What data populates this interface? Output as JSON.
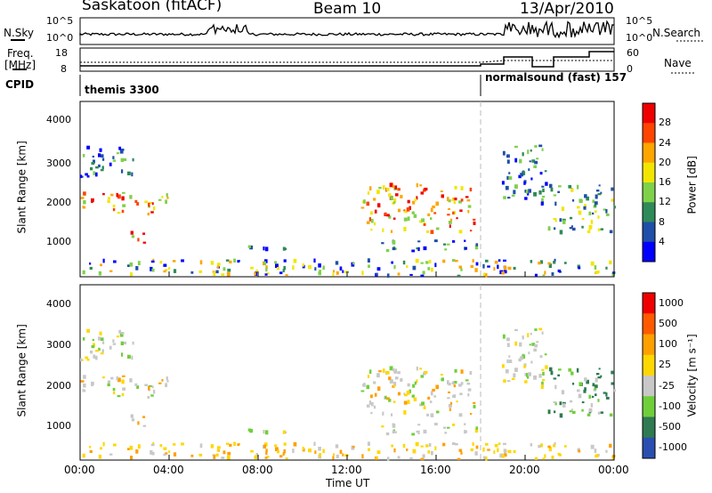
{
  "header": {
    "station": "Saskatoon (fitACF)",
    "beam": "Beam 10",
    "date": "13/Apr/2010"
  },
  "noise_panel": {
    "left_label": "N.Sky",
    "right_label": "N.Search",
    "left_ticks": [
      "10^5",
      "10^0"
    ],
    "right_ticks": [
      "10^5",
      "10^0"
    ]
  },
  "freq_panel": {
    "left_label_line1": "Freq.",
    "left_label_line2": "[MHz]",
    "right_label": "Nave",
    "left_ticks": [
      "18",
      "8"
    ],
    "right_ticks": [
      "60",
      "0"
    ]
  },
  "cpid_panel": {
    "label": "CPID",
    "mode1": "themis 3300",
    "mode2": "normalsound (fast) 157"
  },
  "power_panel": {
    "ylabel": "Slant Range [km]",
    "yticks": [
      "4000",
      "3000",
      "2000",
      "1000"
    ],
    "colorbar_label": "Power [dB]",
    "colorbar_ticks": [
      "28",
      "24",
      "20",
      "16",
      "12",
      "8",
      "4"
    ],
    "colors": [
      "#0000ff",
      "#1f4fa8",
      "#2e8b57",
      "#7fd14a",
      "#f2e600",
      "#ffa500",
      "#ff4400",
      "#ee0000"
    ]
  },
  "velocity_panel": {
    "ylabel": "Slant Range [km]",
    "yticks": [
      "4000",
      "3000",
      "2000",
      "1000"
    ],
    "colorbar_label": "Velocity [m s⁻¹]",
    "colorbar_ticks": [
      "1000",
      "500",
      "100",
      "25",
      "-25",
      "-100",
      "-500",
      "-1000"
    ],
    "colors": [
      "#2a4fb0",
      "#2f7a52",
      "#6fcf3a",
      "#c8c8c8",
      "#ffd700",
      "#ff9f00",
      "#ff5a00",
      "#ee0000"
    ]
  },
  "time_axis": {
    "label": "Time UT",
    "ticks": [
      "00:00",
      "04:00",
      "08:00",
      "12:00",
      "16:00",
      "20:00",
      "00:00"
    ]
  },
  "chart_data": {
    "type": "heatmap",
    "x_range_hours": [
      0,
      24
    ],
    "y_range_km": [
      180,
      4600
    ],
    "mode_change_hour": 18,
    "power_patches": [
      {
        "t0": 0.0,
        "t1": 3.9,
        "r0": 1750,
        "r1": 2300,
        "level": "high"
      },
      {
        "t0": 2.0,
        "t1": 2.9,
        "r0": 950,
        "r1": 1300,
        "level": "high"
      },
      {
        "t0": 0.0,
        "t1": 2.5,
        "r0": 2700,
        "r1": 3500,
        "level": "low"
      },
      {
        "t0": 7.5,
        "t1": 10.0,
        "r0": 850,
        "r1": 1000,
        "level": "low"
      },
      {
        "t0": 12.6,
        "t1": 17.8,
        "r0": 1300,
        "r1": 2500,
        "level": "high"
      },
      {
        "t0": 13.5,
        "t1": 17.8,
        "r0": 800,
        "r1": 1100,
        "level": "low"
      },
      {
        "t0": 18.9,
        "t1": 21.0,
        "r0": 2000,
        "r1": 3500,
        "level": "low"
      },
      {
        "t0": 21.0,
        "t1": 24.0,
        "r0": 1300,
        "r1": 2500,
        "level": "mid"
      },
      {
        "t0": 0.0,
        "t1": 24.0,
        "r0": 200,
        "r1": 600,
        "level": "ground"
      }
    ]
  }
}
